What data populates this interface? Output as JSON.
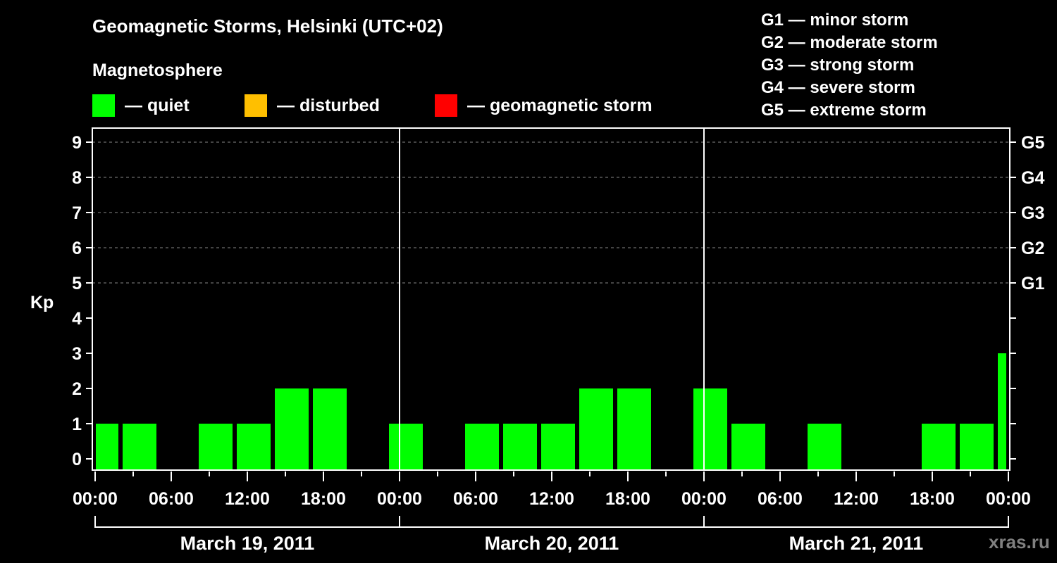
{
  "header": {
    "title": "Geomagnetic Storms, Helsinki (UTC+02)",
    "subtitle": "Magnetosphere"
  },
  "legend": [
    {
      "label": "— quiet",
      "color": "#00ff00"
    },
    {
      "label": "— disturbed",
      "color": "#ffbf00"
    },
    {
      "label": "— geomagnetic storm",
      "color": "#ff0000"
    }
  ],
  "g_scale_legend": [
    "G1 — minor storm",
    "G2 — moderate storm",
    "G3 — strong storm",
    "G4 — severe storm",
    "G5 — extreme storm"
  ],
  "watermark": "xras.ru",
  "chart_data": {
    "type": "bar",
    "title": "Geomagnetic Storms, Helsinki (UTC+02)",
    "subtitle": "Magnetosphere",
    "xlabel": "",
    "ylabel": "Kp",
    "ylim": [
      0,
      9
    ],
    "yticks": [
      0,
      1,
      2,
      3,
      4,
      5,
      6,
      7,
      8,
      9
    ],
    "right_axis_labels": [
      {
        "kp": 5,
        "label": "G1"
      },
      {
        "kp": 6,
        "label": "G2"
      },
      {
        "kp": 7,
        "label": "G3"
      },
      {
        "kp": 8,
        "label": "G4"
      },
      {
        "kp": 9,
        "label": "G5"
      }
    ],
    "grid": "dashed horizontal at Kp 5-9",
    "x_tick_labels": [
      "00:00",
      "06:00",
      "12:00",
      "18:00",
      "00:00",
      "06:00",
      "12:00",
      "18:00",
      "00:00",
      "06:00",
      "12:00",
      "18:00",
      "00:00"
    ],
    "date_labels": [
      "March 19, 2011",
      "March 20, 2011",
      "March 21, 2011"
    ],
    "interval_hours": 3,
    "categories": [
      "Mar 19 00:00",
      "Mar 19 03:00",
      "Mar 19 06:00",
      "Mar 19 09:00",
      "Mar 19 12:00",
      "Mar 19 15:00",
      "Mar 19 18:00",
      "Mar 19 21:00",
      "Mar 20 00:00",
      "Mar 20 03:00",
      "Mar 20 06:00",
      "Mar 20 09:00",
      "Mar 20 12:00",
      "Mar 20 15:00",
      "Mar 20 18:00",
      "Mar 20 21:00",
      "Mar 21 00:00",
      "Mar 21 03:00",
      "Mar 21 06:00",
      "Mar 21 09:00",
      "Mar 21 12:00",
      "Mar 21 15:00",
      "Mar 21 18:00",
      "Mar 21 21:00",
      "Mar 22 00:00"
    ],
    "values": [
      1,
      1,
      0,
      1,
      1,
      2,
      2,
      0,
      1,
      0,
      1,
      1,
      1,
      2,
      2,
      0,
      2,
      1,
      0,
      1,
      0,
      0,
      1,
      1,
      3
    ],
    "bar_color": "#00ff00",
    "legend": [
      "quiet",
      "disturbed",
      "geomagnetic storm"
    ],
    "legend_position": "top"
  }
}
